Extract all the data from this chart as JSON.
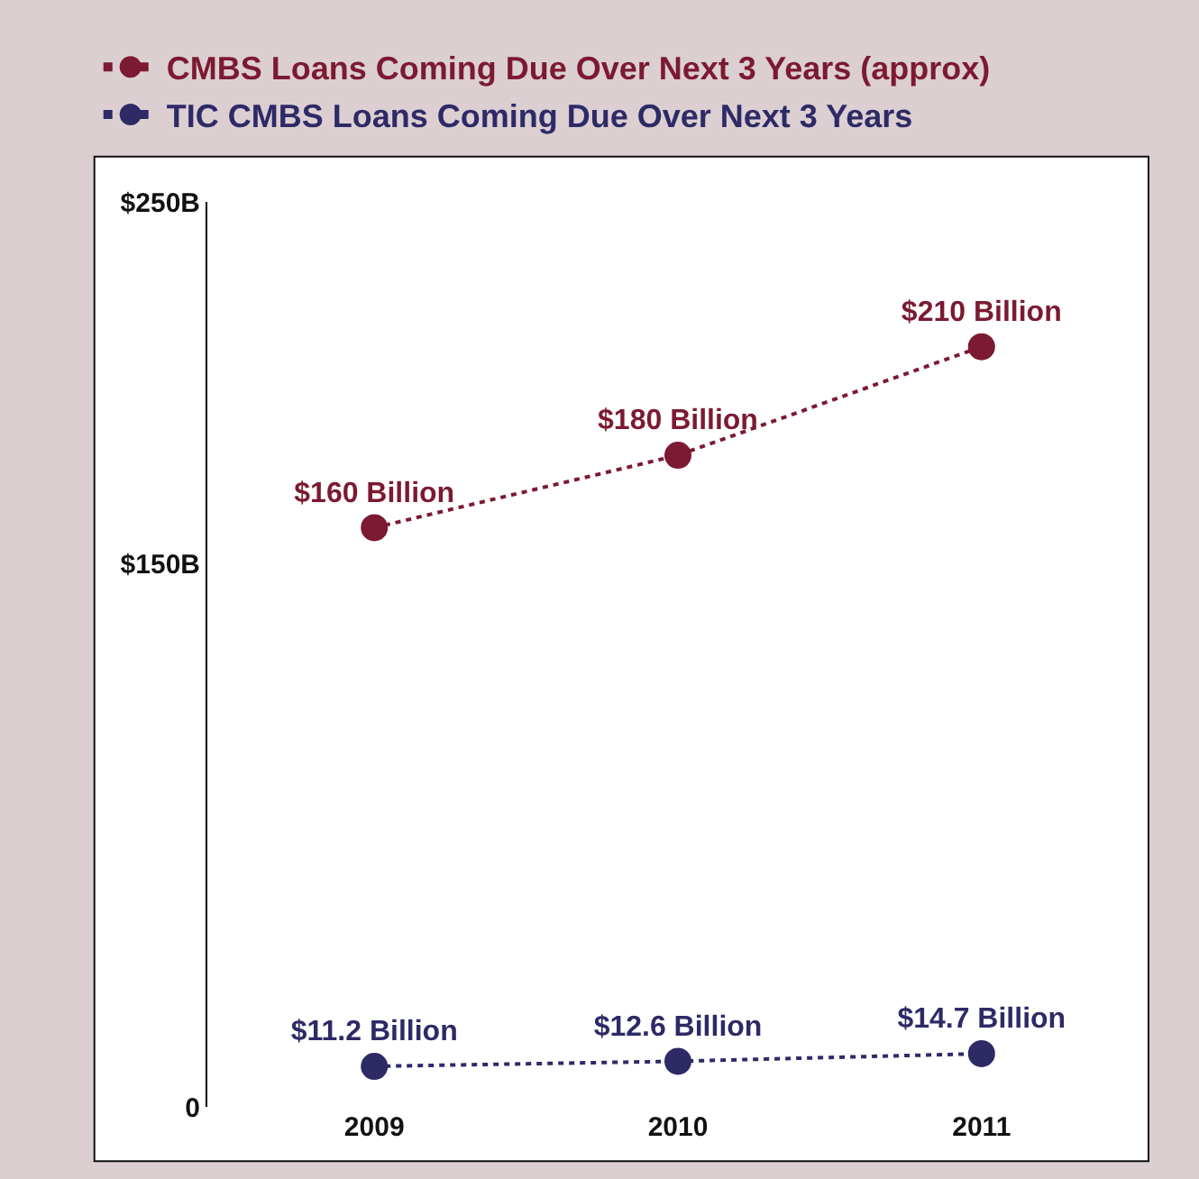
{
  "chart_data": {
    "type": "line",
    "categories": [
      "2009",
      "2010",
      "2011"
    ],
    "series": [
      {
        "name": "CMBS Loans Coming Due Over Next 3 Years (approx)",
        "color": "#7b1a32",
        "values": [
          160,
          180,
          210
        ],
        "value_labels": [
          "$160 Billion",
          "$180 Billion",
          "$210 Billion"
        ]
      },
      {
        "name": "TIC CMBS Loans Coming Due Over Next 3 Years",
        "color": "#2e2a66",
        "values": [
          11.2,
          12.6,
          14.7
        ],
        "value_labels": [
          "$11.2 Billion",
          "$12.6 Billion",
          "$14.7 Billion"
        ]
      }
    ],
    "ylim": [
      0,
      250
    ],
    "yticks": [
      0,
      {
        "value": 150,
        "label": "$150B"
      },
      {
        "value": 250,
        "label": "$250B"
      }
    ],
    "grid": false,
    "legend": "top",
    "marker": "circle",
    "line_style": "dotted"
  }
}
